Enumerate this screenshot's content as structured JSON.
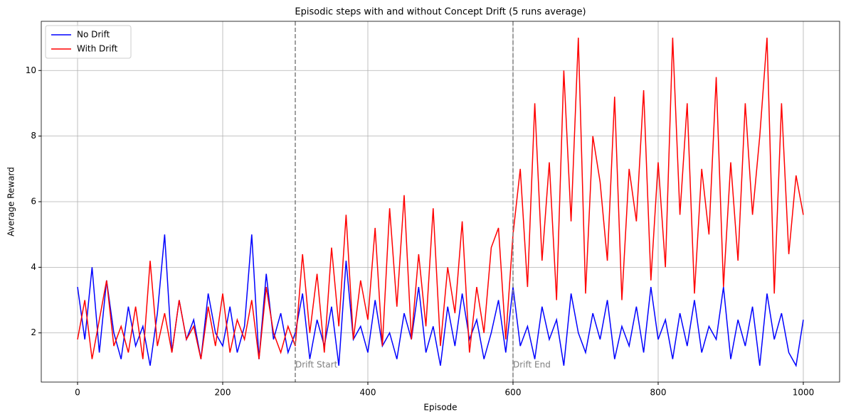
{
  "chart_data": {
    "type": "line",
    "title": "Episodic steps with and without Concept Drift (5 runs average)",
    "x_label": "Episode",
    "y_label": "Average Reward",
    "x": [
      0,
      10,
      20,
      30,
      40,
      50,
      60,
      70,
      80,
      90,
      100,
      110,
      120,
      130,
      140,
      150,
      160,
      170,
      180,
      190,
      200,
      210,
      220,
      230,
      240,
      250,
      260,
      270,
      280,
      290,
      300,
      310,
      320,
      330,
      340,
      350,
      360,
      370,
      380,
      390,
      400,
      410,
      420,
      430,
      440,
      450,
      460,
      470,
      480,
      490,
      500,
      510,
      520,
      530,
      540,
      550,
      560,
      570,
      580,
      590,
      600,
      610,
      620,
      630,
      640,
      650,
      660,
      670,
      680,
      690,
      700,
      710,
      720,
      730,
      740,
      750,
      760,
      770,
      780,
      790,
      800,
      810,
      820,
      830,
      840,
      850,
      860,
      870,
      880,
      890,
      900,
      910,
      920,
      930,
      940,
      950,
      960,
      970,
      980,
      990,
      1000
    ],
    "series": [
      {
        "name": "No Drift",
        "color": "#0000ff",
        "values": [
          3.4,
          1.8,
          4.0,
          1.4,
          3.6,
          2.0,
          1.2,
          2.8,
          1.6,
          2.2,
          1.0,
          2.6,
          5.0,
          1.4,
          3.0,
          1.8,
          2.4,
          1.2,
          3.2,
          2.0,
          1.6,
          2.8,
          1.4,
          2.2,
          5.0,
          1.2,
          3.8,
          1.8,
          2.6,
          1.4,
          2.0,
          3.2,
          1.2,
          2.4,
          1.6,
          2.8,
          1.0,
          4.2,
          1.8,
          2.2,
          1.4,
          3.0,
          1.6,
          2.0,
          1.2,
          2.6,
          1.8,
          3.4,
          1.4,
          2.2,
          1.0,
          2.8,
          1.6,
          3.2,
          1.8,
          2.4,
          1.2,
          2.0,
          3.0,
          1.4,
          3.4,
          1.6,
          2.2,
          1.2,
          2.8,
          1.8,
          2.4,
          1.0,
          3.2,
          2.0,
          1.4,
          2.6,
          1.8,
          3.0,
          1.2,
          2.2,
          1.6,
          2.8,
          1.4,
          3.4,
          1.8,
          2.4,
          1.2,
          2.6,
          1.6,
          3.0,
          1.4,
          2.2,
          1.8,
          3.4,
          1.2,
          2.4,
          1.6,
          2.8,
          1.0,
          3.2,
          1.8,
          2.6,
          1.4,
          1.0,
          2.4
        ]
      },
      {
        "name": "With Drift",
        "color": "#ff0000",
        "values": [
          1.8,
          3.0,
          1.2,
          2.4,
          3.6,
          1.6,
          2.2,
          1.4,
          2.8,
          1.2,
          4.2,
          1.6,
          2.6,
          1.4,
          3.0,
          1.8,
          2.2,
          1.2,
          2.8,
          1.6,
          3.2,
          1.4,
          2.4,
          1.8,
          3.0,
          1.2,
          3.4,
          2.0,
          1.4,
          2.2,
          1.6,
          4.4,
          2.0,
          3.8,
          1.4,
          4.6,
          2.2,
          5.6,
          1.8,
          3.6,
          2.4,
          5.2,
          1.6,
          5.8,
          2.8,
          6.2,
          1.8,
          4.4,
          2.2,
          5.8,
          1.6,
          4.0,
          2.6,
          5.4,
          1.4,
          3.4,
          2.0,
          4.6,
          5.2,
          1.8,
          5.0,
          7.0,
          3.4,
          9.0,
          4.2,
          7.2,
          3.0,
          10.0,
          5.4,
          11.0,
          3.2,
          8.0,
          6.6,
          4.2,
          9.2,
          3.0,
          7.0,
          5.4,
          9.4,
          3.6,
          7.2,
          4.0,
          11.0,
          5.6,
          9.0,
          3.2,
          7.0,
          5.0,
          9.8,
          3.4,
          7.2,
          4.2,
          9.0,
          5.6,
          8.0,
          11.0,
          3.2,
          9.0,
          4.4,
          6.8,
          5.6
        ]
      }
    ],
    "vlines": [
      {
        "x": 300,
        "label": "Drift Start",
        "color": "#808080"
      },
      {
        "x": 600,
        "label": "Drift End",
        "color": "#808080"
      }
    ],
    "xlim": [
      -50,
      1050
    ],
    "ylim": [
      0.5,
      11.5
    ],
    "xticks": [
      0,
      200,
      400,
      600,
      800,
      1000
    ],
    "yticks": [
      2,
      4,
      6,
      8,
      10
    ],
    "grid": true,
    "legend": "upper left"
  }
}
